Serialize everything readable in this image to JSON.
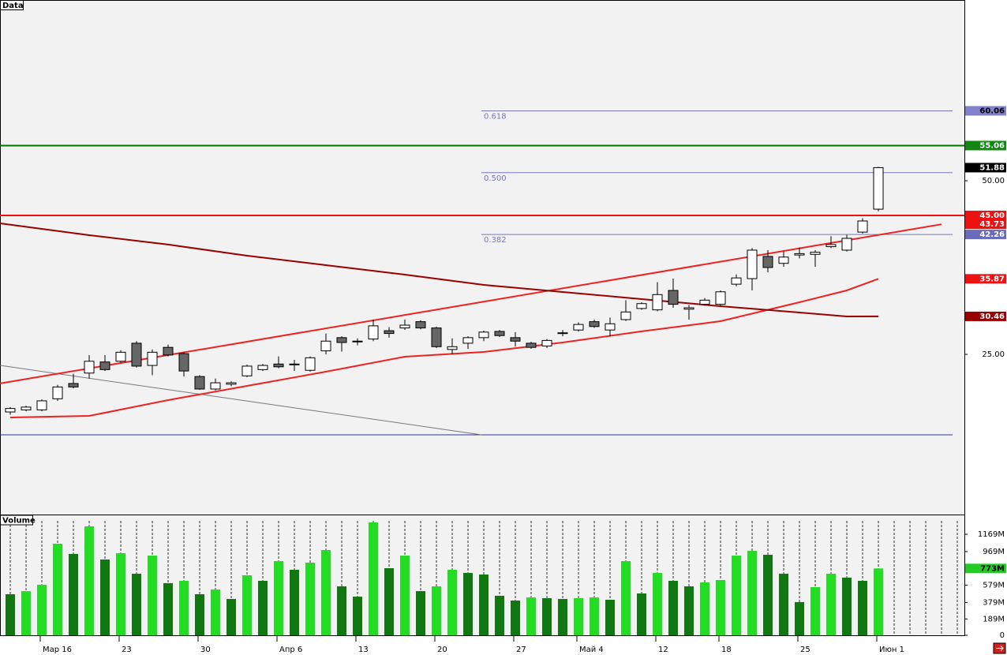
{
  "chart_data": [
    {
      "type": "candlestick",
      "title": "Data",
      "xlim": [
        -0.65,
        60.45
      ],
      "ylim": [
        1.93,
        76.02
      ],
      "yticks": [
        {
          "value": 25,
          "label": "25.00"
        },
        {
          "value": 50,
          "label": "50.00"
        }
      ],
      "up_color": "#ffffff",
      "down_color": "#666666",
      "open": [
        16.7,
        17.0,
        17.0,
        18.6,
        20.8,
        22.3,
        23.9,
        24.0,
        26.6,
        23.4,
        26.0,
        25.1,
        21.8,
        20.0,
        20.7,
        21.9,
        22.8,
        23.6,
        23.5,
        22.7,
        25.5,
        27.4,
        26.9,
        27.2,
        28.4,
        28.8,
        29.7,
        28.8,
        25.7,
        26.6,
        27.4,
        28.3,
        27.4,
        26.6,
        26.2,
        28.0,
        28.5,
        29.7,
        28.5,
        30.0,
        31.6,
        31.4,
        34.2,
        31.5,
        32.2,
        32.2,
        35.1,
        35.9,
        39.1,
        38.1,
        39.3,
        39.4,
        40.5,
        40.0,
        42.6,
        45.9
      ],
      "high": [
        17.4,
        17.6,
        18.5,
        20.6,
        22.2,
        24.9,
        24.9,
        25.6,
        26.9,
        25.7,
        26.4,
        25.3,
        22.0,
        21.5,
        21.1,
        23.5,
        23.6,
        24.7,
        24.2,
        24.7,
        28.0,
        27.6,
        27.3,
        30.0,
        28.9,
        30.0,
        29.9,
        29.0,
        27.3,
        27.6,
        28.4,
        28.5,
        28.2,
        26.8,
        27.2,
        28.5,
        29.6,
        30.0,
        30.3,
        32.8,
        32.5,
        35.4,
        35.9,
        32.1,
        33.1,
        34.2,
        36.5,
        40.3,
        40.0,
        39.8,
        40.4,
        40.0,
        42.0,
        42.2,
        44.6,
        52.0
      ],
      "low": [
        16.3,
        16.8,
        16.8,
        18.3,
        20.1,
        21.5,
        22.6,
        23.8,
        23.1,
        22.0,
        24.7,
        21.8,
        19.9,
        19.8,
        20.4,
        21.7,
        22.6,
        23.0,
        22.6,
        22.5,
        25.0,
        25.4,
        26.3,
        26.9,
        27.4,
        28.5,
        28.6,
        25.9,
        25.0,
        25.8,
        26.9,
        27.5,
        26.1,
        25.8,
        25.9,
        27.6,
        28.3,
        28.8,
        27.6,
        29.8,
        31.4,
        31.2,
        31.7,
        30.0,
        32.0,
        32.0,
        34.8,
        34.2,
        36.8,
        37.6,
        38.8,
        37.6,
        40.3,
        39.8,
        42.4,
        45.6
      ],
      "close": [
        17.2,
        17.4,
        18.3,
        20.3,
        20.3,
        24.0,
        22.8,
        25.3,
        23.3,
        25.3,
        24.9,
        22.6,
        20.0,
        20.9,
        20.9,
        23.3,
        23.4,
        23.2,
        23.6,
        24.5,
        26.9,
        26.7,
        26.9,
        29.1,
        28.0,
        29.2,
        28.8,
        26.1,
        26.1,
        27.4,
        28.2,
        27.7,
        26.9,
        26.0,
        27.0,
        28.1,
        29.3,
        29.0,
        29.4,
        31.1,
        32.3,
        33.6,
        32.2,
        31.7,
        32.8,
        34.0,
        36.0,
        40.0,
        37.5,
        39.0,
        39.5,
        39.7,
        40.8,
        41.7,
        44.2,
        51.88
      ],
      "lines": [
        {
          "x": [
            -0.65,
            60.45
          ],
          "values": [
            55.06,
            55.06
          ],
          "color": "#007700",
          "width": 2
        },
        {
          "x": [
            -0.65,
            60.45
          ],
          "values": [
            45.0,
            45.0
          ],
          "color": "#ee1111",
          "width": 2
        },
        {
          "x": [
            -0.65,
            59.7
          ],
          "values": [
            13.41,
            13.41
          ],
          "color": "#333399",
          "width": 1
        },
        {
          "x": [
            -0.65,
            29.85
          ],
          "values": [
            23.41,
            13.41
          ],
          "color": "#777777",
          "width": 1
        },
        {
          "x": [
            -0.65,
            59
          ],
          "values": [
            20.8,
            43.73
          ],
          "color": "#ee2222",
          "width": 2
        },
        {
          "x": [
            0,
            5,
            10,
            15,
            20,
            25,
            30,
            35,
            40,
            45,
            50,
            53,
            55
          ],
          "values": [
            15.91,
            16.14,
            18.41,
            20.45,
            22.5,
            24.66,
            25.34,
            26.7,
            28.3,
            29.77,
            32.5,
            34.2,
            35.87
          ],
          "color": "#ee2222",
          "width": 2
        },
        {
          "x": [
            -0.65,
            5,
            10,
            15,
            20,
            25,
            30,
            35,
            40,
            45,
            50,
            53,
            55
          ],
          "values": [
            43.86,
            42.16,
            40.8,
            39.2,
            37.84,
            36.48,
            35.0,
            33.98,
            32.95,
            31.93,
            31.02,
            30.45,
            30.46
          ],
          "color": "#990000",
          "width": 2
        }
      ],
      "fib_x": [
        29.85,
        59.7
      ],
      "fib_color": "#7777bb",
      "fib_levels": [
        {
          "value": 60.06,
          "label": "0.618"
        },
        {
          "value": 51.16,
          "label": "0.500"
        },
        {
          "value": 42.26,
          "label": "0.382"
        }
      ],
      "price_tags": [
        {
          "value": 60.06,
          "bg": "#8080cc",
          "fg": "#000000"
        },
        {
          "value": 55.06,
          "bg": "#118811",
          "fg": "#ffffff"
        },
        {
          "value": 51.88,
          "bg": "#000000",
          "fg": "#ffffff"
        },
        {
          "value": 45.0,
          "label": "45.00",
          "bg": "#ee1111",
          "fg": "#ffffff"
        },
        {
          "value": 43.73,
          "bg": "#ee1111",
          "fg": "#ffffff"
        },
        {
          "value": 42.26,
          "bg": "#6b6bbb",
          "fg": "#ffffff"
        },
        {
          "value": 35.87,
          "bg": "#ee1111",
          "fg": "#ffffff"
        },
        {
          "value": 30.46,
          "bg": "#990000",
          "fg": "#ffffff"
        }
      ]
    },
    {
      "type": "bar",
      "title": "Volume",
      "categories": [
        null,
        null,
        "Мар 16",
        null,
        null,
        null,
        null,
        "23",
        null,
        null,
        null,
        null,
        "30",
        null,
        null,
        null,
        null,
        "Апр 6",
        null,
        null,
        null,
        null,
        "13",
        null,
        null,
        null,
        null,
        "20",
        null,
        null,
        null,
        null,
        "27",
        null,
        null,
        null,
        "Май 4",
        null,
        null,
        null,
        null,
        "12",
        null,
        null,
        null,
        "18",
        null,
        null,
        null,
        null,
        "25",
        null,
        null,
        null,
        null,
        "Июн 1"
      ],
      "values": [
        475,
        511,
        584,
        1059,
        941,
        1260,
        877,
        950,
        712,
        922,
        603,
        630,
        475,
        530,
        420,
        694,
        630,
        858,
        758,
        840,
        986,
        566,
        447,
        1306,
        776,
        922,
        511,
        566,
        758,
        721,
        703,
        457,
        402,
        438,
        429,
        420,
        429,
        438,
        411,
        858,
        484,
        721,
        630,
        566,
        612,
        639,
        922,
        977,
        931,
        712,
        384,
        557,
        712,
        667,
        630,
        773
      ],
      "up_color": "#22dd22",
      "down_color": "#117711",
      "ylim": [
        0,
        1397
      ],
      "yticks": [
        0,
        {
          "value": 189,
          "label": "189M"
        },
        {
          "value": 379,
          "label": "379M"
        },
        {
          "value": 579,
          "label": "579M"
        },
        {
          "value": 969,
          "label": "969M"
        },
        {
          "value": 1169,
          "label": "1169M"
        }
      ],
      "last_tag": {
        "value": 773,
        "label": "773M",
        "bg": "#22cc22",
        "fg": "#000000"
      }
    }
  ]
}
